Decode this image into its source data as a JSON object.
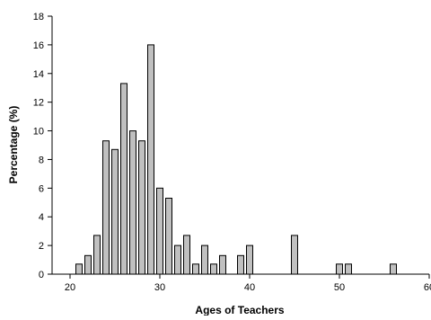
{
  "chart_data": {
    "type": "bar",
    "title": "",
    "xlabel": "Ages of Teachers",
    "ylabel": "Percentage (%)",
    "xlim": [
      18,
      60
    ],
    "ylim": [
      0,
      18
    ],
    "x_ticks": [
      "20",
      "30",
      "40",
      "50",
      "60"
    ],
    "y_ticks": [
      "0",
      "2",
      "4",
      "6",
      "8",
      "10",
      "12",
      "14",
      "16",
      "18"
    ],
    "grid": false,
    "legend": "none",
    "bar_color": "#c0c0c0",
    "bar_edge_color": "#000000",
    "x": [
      21,
      22,
      23,
      24,
      25,
      26,
      27,
      28,
      29,
      30,
      31,
      32,
      33,
      34,
      35,
      36,
      37,
      39,
      40,
      45,
      50,
      51,
      56
    ],
    "values": [
      0.7,
      1.3,
      2.7,
      9.3,
      8.7,
      13.3,
      10.0,
      9.3,
      16.0,
      6.0,
      5.3,
      2.0,
      2.7,
      0.7,
      2.0,
      0.7,
      1.3,
      1.3,
      2.0,
      2.7,
      0.7,
      0.7,
      0.7
    ]
  }
}
